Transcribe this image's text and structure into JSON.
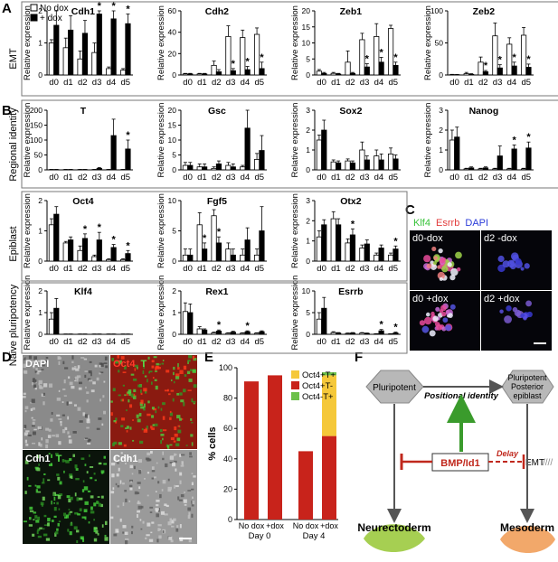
{
  "panels": {
    "A": "A",
    "B": "B",
    "C": "C",
    "D": "D",
    "E": "E",
    "F": "F"
  },
  "row_labels": {
    "emt": "EMT",
    "regional": "Regional identity",
    "epiblast": "Epiblast",
    "naive": "Naive pluripotency"
  },
  "legend_a": {
    "no_dox": "No dox",
    "plus_dox": "+ dox"
  },
  "ylabel": "Relative expression",
  "days": [
    "d0",
    "d1",
    "d2",
    "d3",
    "d4",
    "d5"
  ],
  "colors": {
    "no_dox": "#ffffff",
    "plus_dox": "#000000",
    "oct4_tp": "#f5c83a",
    "oct4_tm": "#c8231b",
    "oct4m_tp": "#6cc04a"
  },
  "chart_data": [
    {
      "type": "bar",
      "panel": "A",
      "gene": "Cdh1",
      "ylim": [
        0,
        2
      ],
      "ticks": [
        0,
        1,
        2
      ],
      "series": [
        {
          "name": "No dox",
          "values": [
            1.0,
            0.85,
            0.5,
            0.7,
            0.2,
            0.15
          ]
        },
        {
          "name": "+ dox",
          "values": [
            1.55,
            1.4,
            1.3,
            1.9,
            1.75,
            1.6
          ]
        }
      ],
      "err": [
        [
          0.1,
          0.3,
          0.25,
          0.3,
          0.05,
          0.05
        ],
        [
          0.55,
          0.45,
          0.4,
          0.45,
          0.4,
          0.3
        ]
      ],
      "stars": [
        3,
        4,
        5
      ]
    },
    {
      "type": "bar",
      "panel": "A",
      "gene": "Cdh2",
      "ylim": [
        0,
        60
      ],
      "ticks": [
        0,
        20,
        40,
        60
      ],
      "series": [
        {
          "name": "No dox",
          "values": [
            1,
            1,
            9,
            36,
            35,
            38
          ]
        },
        {
          "name": "+ dox",
          "values": [
            1,
            1,
            3,
            4,
            5,
            6
          ]
        }
      ],
      "err": [
        [
          0.5,
          0.5,
          4,
          10,
          7,
          6
        ],
        [
          0.5,
          0.5,
          2,
          2,
          3,
          6
        ]
      ],
      "stars": [
        3,
        4,
        5
      ]
    },
    {
      "type": "bar",
      "panel": "A",
      "gene": "Zeb1",
      "ylim": [
        0,
        20
      ],
      "ticks": [
        0,
        5,
        10,
        15,
        20
      ],
      "series": [
        {
          "name": "No dox",
          "values": [
            1.2,
            0.5,
            4,
            11,
            12,
            14.5
          ]
        },
        {
          "name": "+ dox",
          "values": [
            0.5,
            0.3,
            0.5,
            2.5,
            4,
            3
          ]
        }
      ],
      "err": [
        [
          0.5,
          0.3,
          3.5,
          2,
          4,
          1
        ],
        [
          0.3,
          0.2,
          0.3,
          1,
          1.5,
          1
        ]
      ],
      "stars": [
        3,
        4,
        5
      ]
    },
    {
      "type": "bar",
      "panel": "A",
      "gene": "Zeb2",
      "ylim": [
        0,
        100
      ],
      "ticks": [
        0,
        50,
        100
      ],
      "series": [
        {
          "name": "No dox",
          "values": [
            0.5,
            2,
            20,
            61,
            48,
            62
          ]
        },
        {
          "name": "+ dox",
          "values": [
            0.5,
            1,
            5,
            11,
            14,
            12
          ]
        }
      ],
      "err": [
        [
          0.5,
          2,
          8,
          20,
          10,
          12
        ],
        [
          0.3,
          1,
          2,
          5,
          6,
          5
        ]
      ],
      "stars": [
        2,
        3,
        4,
        5
      ]
    },
    {
      "type": "bar",
      "panel": "B",
      "gene": "T",
      "ylim": [
        0,
        200
      ],
      "ticks": [
        0,
        50,
        100,
        150,
        200
      ],
      "series": [
        {
          "name": "No dox",
          "values": [
            1,
            1,
            1,
            1,
            1,
            1
          ]
        },
        {
          "name": "+ dox",
          "values": [
            1,
            1,
            1,
            5,
            115,
            70
          ]
        }
      ],
      "err": [
        [
          0.5,
          0.5,
          0.5,
          0.5,
          0.5,
          0.5
        ],
        [
          0.5,
          0.5,
          0.5,
          3,
          55,
          30
        ]
      ],
      "stars": [
        5
      ]
    },
    {
      "type": "bar",
      "panel": "B",
      "gene": "Gsc",
      "ylim": [
        0,
        20
      ],
      "ticks": [
        0,
        5,
        10,
        15,
        20
      ],
      "series": [
        {
          "name": "No dox",
          "values": [
            1.5,
            1,
            0.5,
            1.5,
            1,
            3.5
          ]
        },
        {
          "name": "+ dox",
          "values": [
            1.5,
            1,
            2,
            1,
            14,
            6.5
          ]
        }
      ],
      "err": [
        [
          1,
          1,
          0.5,
          1,
          0.5,
          2
        ],
        [
          1,
          1,
          1,
          1,
          6,
          5
        ]
      ],
      "stars": []
    },
    {
      "type": "bar",
      "panel": "B",
      "gene": "Sox2",
      "ylim": [
        0,
        3
      ],
      "ticks": [
        0,
        1,
        2,
        3
      ],
      "series": [
        {
          "name": "No dox",
          "values": [
            1.5,
            0.4,
            0.45,
            1.0,
            0.7,
            0.8
          ]
        },
        {
          "name": "+ dox",
          "values": [
            2.0,
            0.35,
            0.35,
            0.5,
            0.5,
            0.55
          ]
        }
      ],
      "err": [
        [
          0.25,
          0.1,
          0.1,
          0.4,
          0.3,
          0.3
        ],
        [
          0.5,
          0.1,
          0.1,
          0.2,
          0.3,
          0.2
        ]
      ],
      "stars": []
    },
    {
      "type": "bar",
      "panel": "B",
      "gene": "Nanog",
      "ylim": [
        0,
        3
      ],
      "ticks": [
        0,
        1,
        2,
        3
      ],
      "series": [
        {
          "name": "No dox",
          "values": [
            1.5,
            0.05,
            0.05,
            0.05,
            0.05,
            0.05
          ]
        },
        {
          "name": "+ dox",
          "values": [
            1.65,
            0.1,
            0.1,
            0.7,
            1.05,
            1.1
          ]
        }
      ],
      "err": [
        [
          0.5,
          0.03,
          0.03,
          0.03,
          0.03,
          0.03
        ],
        [
          0.5,
          0.05,
          0.05,
          0.5,
          0.2,
          0.3
        ]
      ],
      "stars": [
        4,
        5
      ]
    },
    {
      "type": "bar",
      "panel": "B",
      "gene": "Oct4",
      "ylim": [
        0,
        2
      ],
      "ticks": [
        0,
        1,
        2
      ],
      "series": [
        {
          "name": "No dox",
          "values": [
            1.2,
            0.6,
            0.35,
            0.15,
            0.05,
            0.05
          ]
        },
        {
          "name": "+ dox",
          "values": [
            1.55,
            0.7,
            0.75,
            0.7,
            0.45,
            0.25
          ]
        }
      ],
      "err": [
        [
          0.2,
          0.05,
          0.15,
          0.05,
          0.03,
          0.03
        ],
        [
          0.25,
          0.1,
          0.15,
          0.25,
          0.1,
          0.1
        ]
      ],
      "stars": [
        2,
        3,
        4,
        5
      ]
    },
    {
      "type": "bar",
      "panel": "B",
      "gene": "Fgf5",
      "ylim": [
        0,
        10
      ],
      "ticks": [
        0,
        5,
        10
      ],
      "series": [
        {
          "name": "No dox",
          "values": [
            1,
            6,
            7.5,
            2,
            1,
            1
          ]
        },
        {
          "name": "+ dox",
          "values": [
            1,
            2,
            3,
            1,
            3.5,
            5
          ]
        }
      ],
      "err": [
        [
          1,
          2,
          1,
          1,
          1,
          1
        ],
        [
          1,
          1,
          1,
          1,
          2,
          4
        ]
      ],
      "stars": [
        1,
        2
      ]
    },
    {
      "type": "bar",
      "panel": "B",
      "gene": "Otx2",
      "ylim": [
        0,
        3
      ],
      "ticks": [
        0,
        1,
        2,
        3
      ],
      "series": [
        {
          "name": "No dox",
          "values": [
            1.2,
            2.1,
            0.9,
            0.65,
            0.3,
            0.3
          ]
        },
        {
          "name": "+ dox",
          "values": [
            1.8,
            1.8,
            1.3,
            0.85,
            0.65,
            0.6
          ]
        }
      ],
      "err": [
        [
          0.3,
          0.35,
          0.2,
          0.15,
          0.1,
          0.1
        ],
        [
          0.25,
          0.3,
          0.3,
          0.2,
          0.15,
          0.15
        ]
      ],
      "stars": [
        2,
        5
      ]
    },
    {
      "type": "bar",
      "panel": "B",
      "gene": "Klf4",
      "ylim": [
        0,
        2
      ],
      "ticks": [
        0,
        1,
        2
      ],
      "series": [
        {
          "name": "No dox",
          "values": [
            0.7,
            0.01,
            0.01,
            0.01,
            0.01,
            0.01
          ]
        },
        {
          "name": "+ dox",
          "values": [
            1.2,
            0.01,
            0.01,
            0.01,
            0.01,
            0.01
          ]
        }
      ],
      "err": [
        [
          0.3,
          0.005,
          0.005,
          0.005,
          0.005,
          0.005
        ],
        [
          0.45,
          0.005,
          0.005,
          0.005,
          0.005,
          0.005
        ]
      ],
      "stars": []
    },
    {
      "type": "bar",
      "panel": "B",
      "gene": "Rex1",
      "ylim": [
        0,
        2
      ],
      "ticks": [
        0,
        1,
        2
      ],
      "series": [
        {
          "name": "No dox",
          "values": [
            1.05,
            0.25,
            0.07,
            0.05,
            0.05,
            0.05
          ]
        },
        {
          "name": "+ dox",
          "values": [
            1.0,
            0.2,
            0.15,
            0.1,
            0.12,
            0.12
          ]
        }
      ],
      "err": [
        [
          0.4,
          0.1,
          0.03,
          0.02,
          0.02,
          0.02
        ],
        [
          0.4,
          0.05,
          0.05,
          0.04,
          0.04,
          0.04
        ]
      ],
      "stars": [
        2,
        4
      ]
    },
    {
      "type": "bar",
      "panel": "B",
      "gene": "Esrrb",
      "ylim": [
        0,
        10
      ],
      "ticks": [
        0,
        5,
        10
      ],
      "series": [
        {
          "name": "No dox",
          "values": [
            3.5,
            0.4,
            0.2,
            0.3,
            0.1,
            0.1
          ]
        },
        {
          "name": "+ dox",
          "values": [
            6,
            0.3,
            0.3,
            0.2,
            0.8,
            0.3
          ]
        }
      ],
      "err": [
        [
          1.5,
          0.2,
          0.1,
          0.1,
          0.05,
          0.05
        ],
        [
          2.5,
          0.1,
          0.1,
          0.1,
          0.3,
          0.2
        ]
      ],
      "stars": [
        4,
        5
      ]
    },
    {
      "type": "bar",
      "panel": "E",
      "stacked": true,
      "ylabel": "% cells",
      "ylim": [
        0,
        100
      ],
      "ticks": [
        0,
        20,
        40,
        60,
        80,
        100
      ],
      "categories": [
        "No dox",
        "+dox",
        "No dox",
        "+dox"
      ],
      "groups": [
        "Day 0",
        "Day 4"
      ],
      "series": [
        {
          "name": "Oct4+T+",
          "values": [
            0,
            0,
            0,
            40
          ]
        },
        {
          "name": "Oct4+T-",
          "values": [
            91,
            95,
            45,
            55
          ]
        },
        {
          "name": "Oct4-T+",
          "values": [
            0,
            0,
            0,
            2
          ]
        }
      ]
    }
  ],
  "panel_c": {
    "title_klf4": "Klf4",
    "title_esrrb": "Esrrb",
    "title_dapi": "DAPI",
    "tiles": [
      "d0-dox",
      "d2 -dox",
      "d0 +dox",
      "d2 +dox"
    ]
  },
  "panel_d": {
    "tl": "DAPI",
    "tr_oct4": "Oct4",
    "tr_t": "T",
    "bl_cdh1": "Cdh1",
    "bl_t": "T",
    "br": "Cdh1"
  },
  "panel_f": {
    "pluripotent": "Pluripotent",
    "posterior": [
      "Pluripotent",
      "Posterior",
      "epiblast"
    ],
    "positional": "Positional identity",
    "bmp": "BMP/Id1",
    "delay": "Delay",
    "emt": "EMT",
    "neurectoderm": "Neurectoderm",
    "mesoderm": "Mesoderm"
  }
}
